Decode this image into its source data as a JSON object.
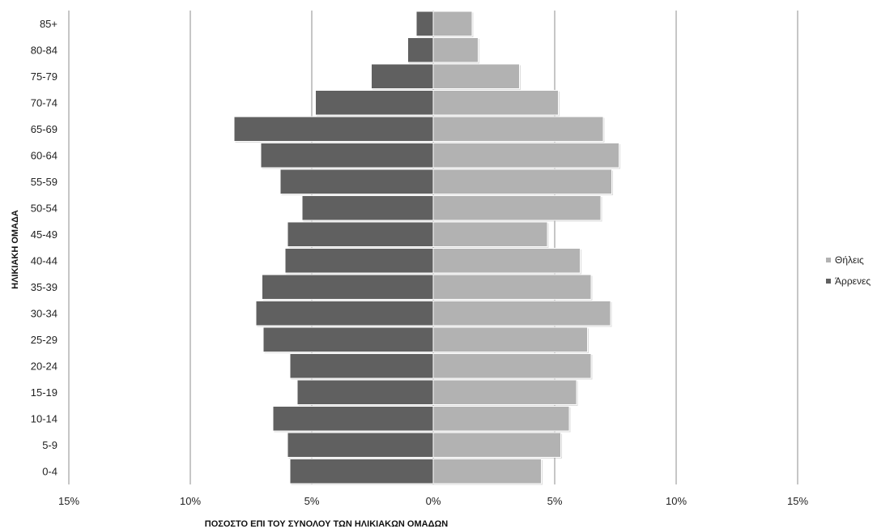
{
  "chart_data": {
    "type": "bar",
    "orientation": "horizontal",
    "subtype": "population-pyramid",
    "categories": [
      "0-4",
      "5-9",
      "10-14",
      "15-19",
      "20-24",
      "25-29",
      "30-34",
      "35-39",
      "40-44",
      "45-49",
      "50-54",
      "55-59",
      "60-64",
      "65-69",
      "70-74",
      "75-79",
      "80-84",
      "85+"
    ],
    "series": [
      {
        "name": "Άρρενες",
        "side": "left",
        "color": "#606060",
        "values": [
          5.9,
          6.0,
          6.6,
          5.6,
          5.9,
          7.0,
          7.3,
          7.05,
          6.1,
          6.0,
          5.4,
          6.3,
          7.1,
          8.2,
          4.85,
          2.55,
          1.05,
          0.7
        ]
      },
      {
        "name": "Θήλεις",
        "side": "right",
        "color": "#b2b2b2",
        "values": [
          4.45,
          5.25,
          5.6,
          5.9,
          6.5,
          6.35,
          7.3,
          6.5,
          6.05,
          4.7,
          6.9,
          7.35,
          7.65,
          7.0,
          5.15,
          3.55,
          1.85,
          1.6
        ]
      }
    ],
    "x_ticks": [
      -15,
      -10,
      -5,
      0,
      5,
      10,
      15
    ],
    "x_tick_labels": [
      "15%",
      "10%",
      "5%",
      "0%",
      "5%",
      "10%",
      "15%"
    ],
    "xlim": [
      -15,
      15
    ],
    "xlabel": "ΠΟΣΟΣΤΟ ΕΠΙ ΤΟΥ ΣΥΝΟΛΟΥ ΤΩΝ ΗΛΙΚΙΑΚΩΝ ΟΜΑΔΩΝ",
    "ylabel": "ΗΛΙΚΙΑΚΗ ΟΜΑΔΑ",
    "title": "",
    "grid": "vertical",
    "legend": {
      "position": "right",
      "entries": [
        "Θήλεις",
        "Άρρενες"
      ]
    }
  }
}
